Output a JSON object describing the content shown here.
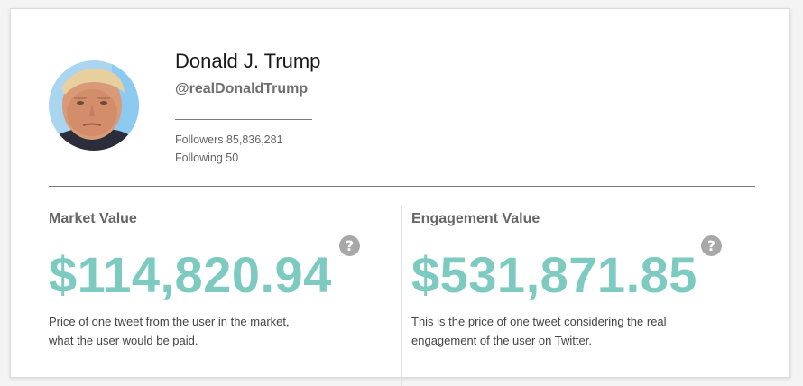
{
  "profile": {
    "name": "Donald J. Trump",
    "handle": "@realDonaldTrump",
    "followers": "Followers 85,836,281",
    "following": "Following 50"
  },
  "market": {
    "title": "Market Value",
    "value": "$114,820.94",
    "help": "?",
    "description_line1": "Price of one tweet from the user in the market,",
    "description_line2": "what the user would be paid."
  },
  "engagement": {
    "title": "Engagement Value",
    "value": "$531,871.85",
    "help": "?",
    "description_line1": "This is the price of one tweet considering the real",
    "description_line2": "engagement of the user on Twitter."
  },
  "colors": {
    "accent": "#7ccac0",
    "help_icon": "#a8a8a8"
  },
  "icons": {
    "avatar": "profile-photo",
    "help": "question-circle-icon"
  }
}
